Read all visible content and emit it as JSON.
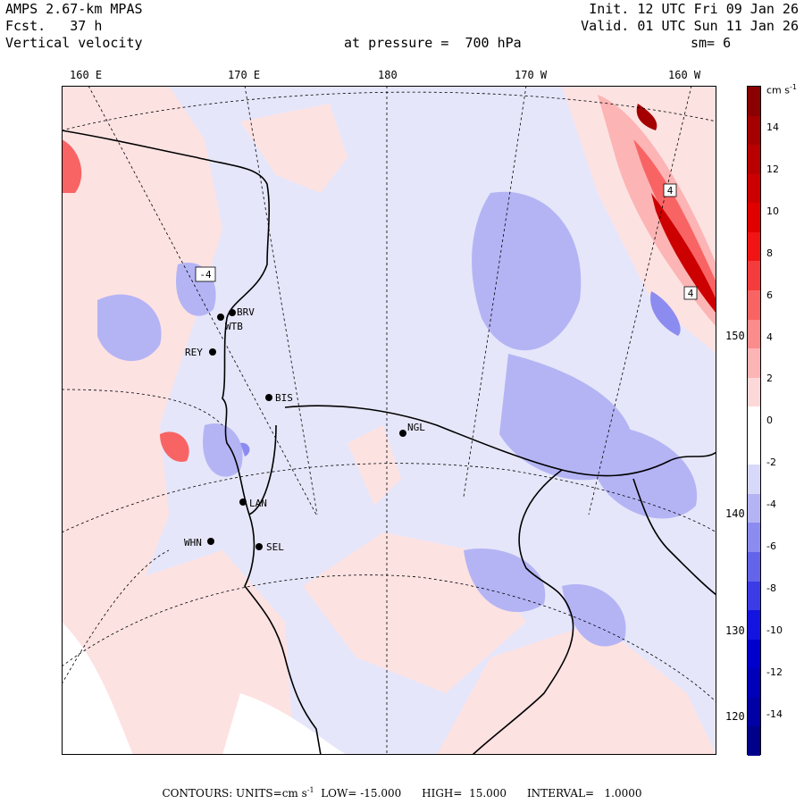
{
  "header": {
    "line1_left": "AMPS 2.67-km MPAS",
    "line2_left": "Fcst.   37 h",
    "line3_left": "Vertical velocity",
    "line1_right": "Init. 12 UTC Fri 09 Jan 26",
    "line2_right": "Valid. 01 UTC Sun 11 Jan 26",
    "pressure": "at pressure =  700 hPa",
    "smoothing": "sm= 6"
  },
  "longitudes_top": [
    "160 E",
    "170 E",
    "180",
    "170 W",
    "160 W"
  ],
  "longitudes_right": [
    "150 W",
    "140 W",
    "130 W",
    "120 W"
  ],
  "colorbar": {
    "unit": "cm s",
    "unit_sup": "-1",
    "ticks": [
      "14",
      "12",
      "10",
      "8",
      "6",
      "4",
      "2",
      "0",
      "-2",
      "-4",
      "-6",
      "-8",
      "-10",
      "-12",
      "-14"
    ],
    "colors": [
      "#8b0000",
      "#a40000",
      "#b80000",
      "#cc0000",
      "#e00000",
      "#f01414",
      "#f53c3c",
      "#f86464",
      "#fa8c8c",
      "#fcb4b4",
      "#fdd8d8",
      "#ffffff",
      "#ffffff",
      "#d8d8fa",
      "#b4b4f5",
      "#8c8cf0",
      "#6464ea",
      "#3c3ce6",
      "#1414e0",
      "#0000cc",
      "#0000b8",
      "#0000a4",
      "#00008b"
    ]
  },
  "stations": [
    {
      "name": "BRV"
    },
    {
      "name": "WTB"
    },
    {
      "name": "REY"
    },
    {
      "name": "BIS"
    },
    {
      "name": "NGL"
    },
    {
      "name": "LAN"
    },
    {
      "name": "WHN"
    },
    {
      "name": "SEL"
    }
  ],
  "contour_labels": [
    "-4",
    "4",
    "4"
  ],
  "footer": {
    "text": "CONTOURS:  UNITS=cm s",
    "sup": "-1",
    "rest": "  LOW= -15.000      HIGH=  15.000      INTERVAL=   1.0000"
  }
}
